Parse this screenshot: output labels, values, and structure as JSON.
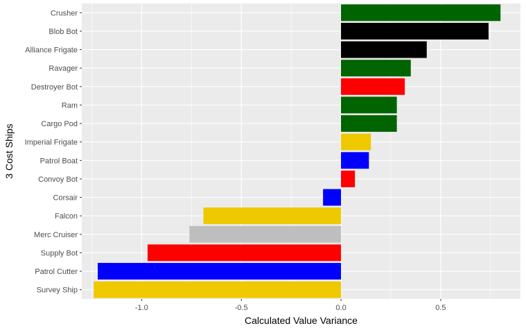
{
  "chart_data": {
    "type": "bar",
    "orientation": "horizontal",
    "title": "",
    "xlabel": "Calculated Value Variance",
    "ylabel": "3 Cost Ships",
    "xlim": [
      -1.3,
      0.9
    ],
    "xticks": [
      -1.0,
      -0.5,
      0.0,
      0.5
    ],
    "xtick_labels": [
      "-1.0",
      "-0.5",
      "0.0",
      "0.5"
    ],
    "grid": true,
    "legend": "none",
    "categories": [
      "Crusher",
      "Blob Bot",
      "Alliance Frigate",
      "Ravager",
      "Destroyer Bot",
      "Ram",
      "Cargo Pod",
      "Imperial Frigate",
      "Patrol Boat",
      "Convoy Bot",
      "Corsair",
      "Falcon",
      "Merc Cruiser",
      "Supply Bot",
      "Patrol Cutter",
      "Survey Ship"
    ],
    "values": [
      0.8,
      0.74,
      0.43,
      0.35,
      0.32,
      0.28,
      0.28,
      0.15,
      0.14,
      0.07,
      -0.09,
      -0.69,
      -0.76,
      -0.97,
      -1.22,
      -1.24
    ],
    "colors": [
      "#006400",
      "#000000",
      "#000000",
      "#006400",
      "#ff0000",
      "#006400",
      "#006400",
      "#eec900",
      "#0000ff",
      "#ff0000",
      "#0000ff",
      "#eec900",
      "#bebebe",
      "#ff0000",
      "#0000ff",
      "#eec900"
    ],
    "panel_background": "#ebebeb",
    "grid_color": "#ffffff"
  }
}
